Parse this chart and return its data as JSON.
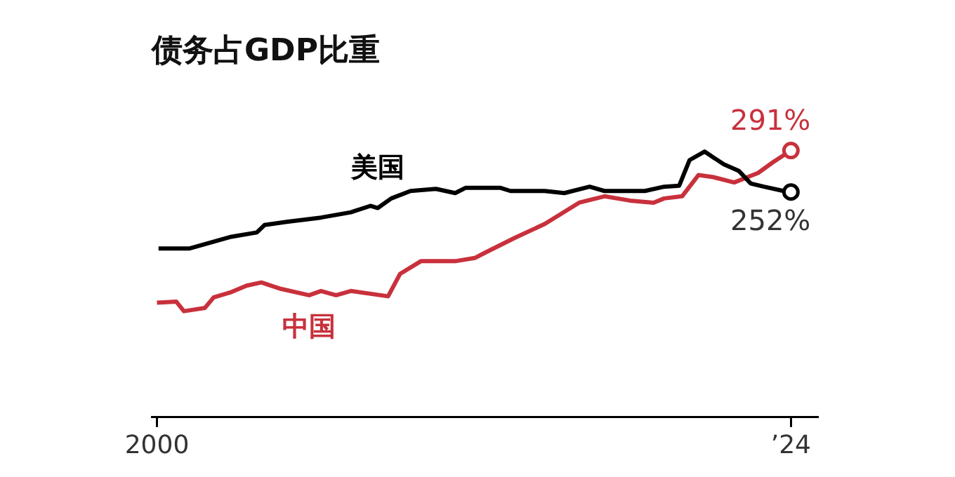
{
  "chart_data": {
    "type": "line",
    "title": "债务占GDP比重",
    "series": [
      {
        "name": "美国",
        "color": "#000000",
        "x": [
          2000.06,
          2001.24,
          2002.09,
          2002.82,
          2003.78,
          2004.07,
          2004.91,
          2006.21,
          2007.34,
          2008.08,
          2008.36,
          2008.87,
          2009.6,
          2010.56,
          2011.29,
          2011.69,
          2012.42,
          2012.99,
          2013.38,
          2014.68,
          2015.42,
          2016.38,
          2016.94,
          2018.47,
          2019.2,
          2019.77,
          2020.16,
          2020.73,
          2021.46,
          2022.02,
          2022.48,
          2022.98,
          2023.72,
          2024
        ],
        "values": [
          199,
          199,
          205,
          210,
          214,
          221,
          224,
          228,
          233,
          239,
          237,
          246,
          253,
          255,
          251,
          256,
          256,
          256,
          253,
          253,
          251,
          257,
          253,
          253,
          257,
          258,
          282,
          290,
          278,
          272,
          260,
          257,
          253,
          252
        ],
        "value_labels": [
          null,
          null,
          null,
          null,
          null,
          null,
          null,
          null,
          null,
          null,
          null,
          null,
          null,
          null,
          null,
          null,
          null,
          null,
          null,
          null,
          null,
          null,
          null,
          null,
          null,
          null,
          null,
          null,
          null,
          null,
          null,
          null,
          null,
          "252%"
        ]
      },
      {
        "name": "中国",
        "color": "#c8313c",
        "x": [
          2000,
          2000.73,
          2001.02,
          2001.81,
          2002.15,
          2002.82,
          2003.39,
          2003.95,
          2004.69,
          2005.76,
          2006.21,
          2006.78,
          2007.34,
          2008.75,
          2009.2,
          2009.99,
          2011.29,
          2012.03,
          2012.42,
          2013.55,
          2014.68,
          2015.98,
          2016.94,
          2017.9,
          2018.8,
          2019.2,
          2019.88,
          2020.5,
          2021.06,
          2021.85,
          2022.76,
          2023.32,
          2024
        ],
        "values": [
          148,
          149,
          140,
          143,
          153,
          158,
          164,
          167,
          161,
          155,
          159,
          155,
          159,
          154,
          175,
          187,
          187,
          190,
          195,
          209,
          222,
          242,
          248,
          244,
          242,
          246,
          248,
          268,
          266,
          261,
          270,
          280,
          291
        ],
        "value_labels": [
          null,
          null,
          null,
          null,
          null,
          null,
          null,
          null,
          null,
          null,
          null,
          null,
          null,
          null,
          null,
          null,
          null,
          null,
          null,
          null,
          null,
          null,
          null,
          null,
          null,
          null,
          null,
          null,
          null,
          null,
          null,
          null,
          "291%"
        ]
      }
    ],
    "xlim": [
      1999.8,
      2025
    ],
    "xticks": [
      2000,
      {
        "value": 2024,
        "label": "’24"
      }
    ],
    "tick_labels": "x",
    "grid": false,
    "legend": false,
    "line_style": "solid"
  }
}
